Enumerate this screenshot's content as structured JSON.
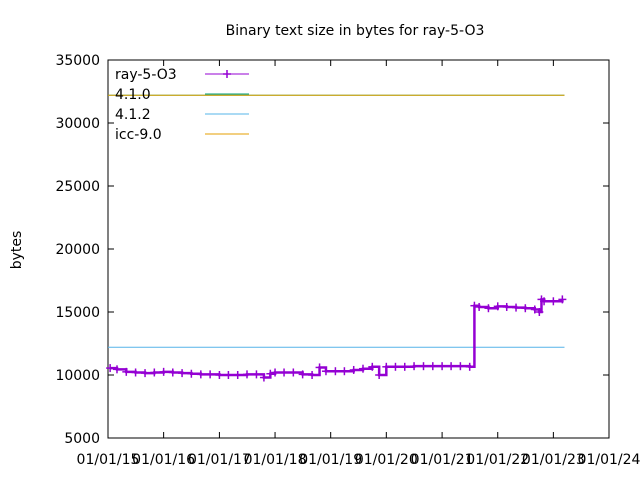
{
  "chart_data": {
    "type": "line",
    "title": "Binary text size in bytes for ray-5-O3",
    "xlabel": "",
    "ylabel": "bytes",
    "ylim": [
      5000,
      35000
    ],
    "xlim": [
      "2015-01-01",
      "2024-01-01"
    ],
    "yticks": [
      5000,
      10000,
      15000,
      20000,
      25000,
      30000,
      35000
    ],
    "xticks": [
      "01/01/15",
      "01/01/16",
      "01/01/17",
      "01/01/18",
      "01/01/19",
      "01/01/20",
      "01/01/21",
      "01/01/22",
      "01/01/23",
      "01/01/24"
    ],
    "xtick_dates": [
      "2015-01-01",
      "2016-01-01",
      "2017-01-01",
      "2018-01-01",
      "2019-01-01",
      "2020-01-01",
      "2021-01-01",
      "2022-01-01",
      "2023-01-01",
      "2024-01-01"
    ],
    "legend_position": "top-left",
    "grid": false,
    "series": [
      {
        "name": "ray-5-O3",
        "color": "#9400d3",
        "style": "linespoints",
        "points": [
          [
            "2015-01-15",
            10550
          ],
          [
            "2015-03-01",
            10450
          ],
          [
            "2015-05-01",
            10250
          ],
          [
            "2015-07-01",
            10200
          ],
          [
            "2015-09-01",
            10150
          ],
          [
            "2015-11-01",
            10200
          ],
          [
            "2016-01-01",
            10250
          ],
          [
            "2016-03-01",
            10200
          ],
          [
            "2016-05-01",
            10150
          ],
          [
            "2016-07-01",
            10100
          ],
          [
            "2016-09-01",
            10050
          ],
          [
            "2016-11-01",
            10050
          ],
          [
            "2017-01-01",
            10000
          ],
          [
            "2017-03-01",
            10000
          ],
          [
            "2017-05-01",
            10000
          ],
          [
            "2017-07-01",
            10050
          ],
          [
            "2017-09-01",
            10050
          ],
          [
            "2017-10-20",
            9800
          ],
          [
            "2017-12-01",
            10100
          ],
          [
            "2018-01-01",
            10200
          ],
          [
            "2018-03-01",
            10200
          ],
          [
            "2018-05-01",
            10200
          ],
          [
            "2018-07-01",
            10050
          ],
          [
            "2018-09-01",
            10000
          ],
          [
            "2018-10-20",
            10600
          ],
          [
            "2018-12-01",
            10300
          ],
          [
            "2019-02-01",
            10300
          ],
          [
            "2019-04-01",
            10300
          ],
          [
            "2019-06-01",
            10400
          ],
          [
            "2019-08-01",
            10500
          ],
          [
            "2019-10-01",
            10650
          ],
          [
            "2019-11-15",
            10000
          ],
          [
            "2020-01-01",
            10650
          ],
          [
            "2020-03-01",
            10650
          ],
          [
            "2020-05-01",
            10650
          ],
          [
            "2020-07-01",
            10700
          ],
          [
            "2020-09-01",
            10700
          ],
          [
            "2020-11-01",
            10700
          ],
          [
            "2021-01-01",
            10700
          ],
          [
            "2021-03-01",
            10700
          ],
          [
            "2021-05-01",
            10700
          ],
          [
            "2021-07-01",
            10650
          ],
          [
            "2021-08-01",
            15500
          ],
          [
            "2021-09-01",
            15400
          ],
          [
            "2021-11-01",
            15300
          ],
          [
            "2022-01-01",
            15450
          ],
          [
            "2022-03-01",
            15400
          ],
          [
            "2022-05-01",
            15350
          ],
          [
            "2022-07-01",
            15300
          ],
          [
            "2022-09-01",
            15200
          ],
          [
            "2022-10-01",
            15000
          ],
          [
            "2022-10-15",
            16000
          ],
          [
            "2022-11-01",
            15850
          ],
          [
            "2023-01-01",
            15850
          ],
          [
            "2023-03-01",
            16000
          ]
        ]
      },
      {
        "name": "4.1.0",
        "color": "#009e73",
        "style": "lines",
        "points": [
          [
            "2015-01-01",
            32200
          ],
          [
            "2023-03-15",
            32200
          ]
        ]
      },
      {
        "name": "4.1.2",
        "color": "#56b4e9",
        "style": "lines",
        "points": [
          [
            "2015-01-01",
            12200
          ],
          [
            "2023-03-15",
            12200
          ]
        ]
      },
      {
        "name": "icc-9.0",
        "color": "#e69f00",
        "style": "lines",
        "points": [
          [
            "2015-01-01",
            32200
          ],
          [
            "2023-03-15",
            32200
          ]
        ]
      }
    ]
  }
}
